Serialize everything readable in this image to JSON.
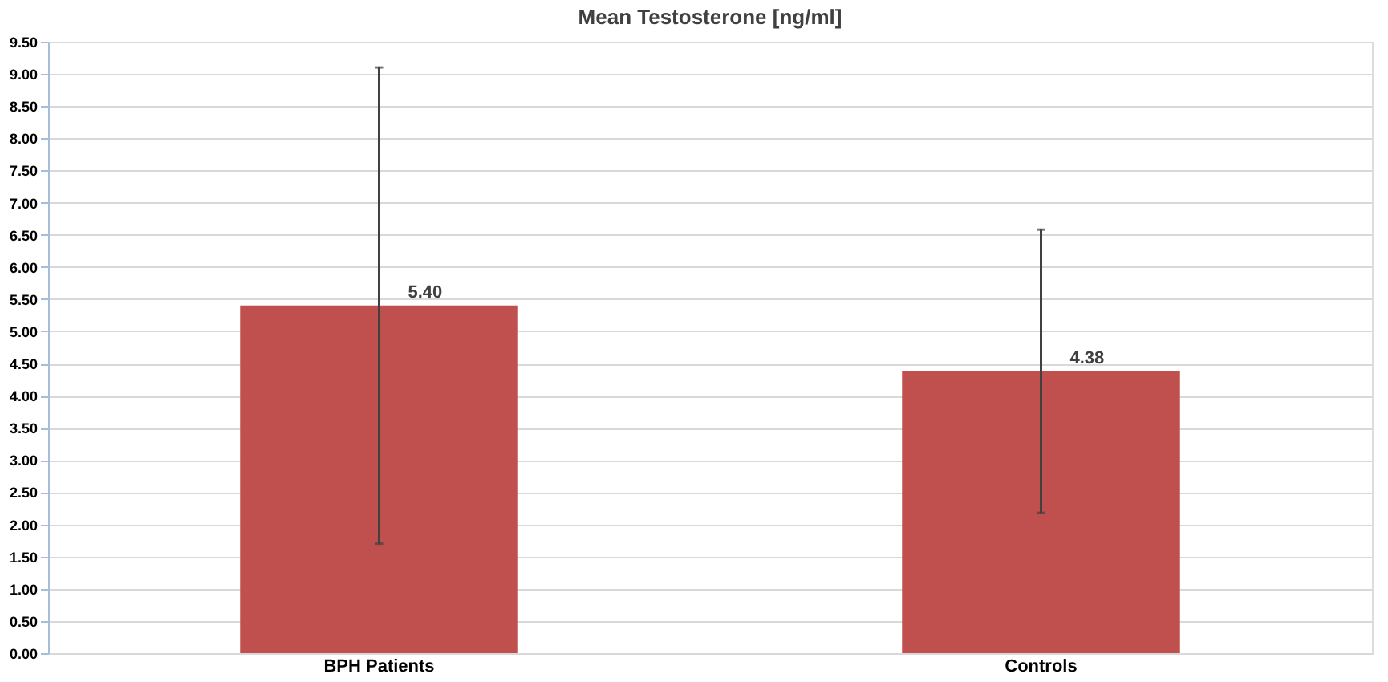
{
  "chart_data": {
    "type": "bar",
    "title": "Mean Testosterone [ng/ml]",
    "categories": [
      "BPH Patients",
      "Controls"
    ],
    "values": [
      5.4,
      4.38
    ],
    "value_labels": [
      "5.40",
      "4.38"
    ],
    "errors": [
      3.7,
      2.2
    ],
    "color": "#c0504d",
    "ylim": [
      0,
      9.5
    ],
    "yticks": [
      {
        "value": 0,
        "label": "0.00"
      },
      {
        "value": 0.5,
        "label": "0.50"
      },
      {
        "value": 1,
        "label": "1.00"
      },
      {
        "value": 1.5,
        "label": "1.50"
      },
      {
        "value": 2,
        "label": "2.00"
      },
      {
        "value": 2.5,
        "label": "2.50"
      },
      {
        "value": 3,
        "label": "3.00"
      },
      {
        "value": 3.5,
        "label": "3.50"
      },
      {
        "value": 4,
        "label": "4.00"
      },
      {
        "value": 4.5,
        "label": "4.50"
      },
      {
        "value": 5,
        "label": "5.00"
      },
      {
        "value": 5.5,
        "label": "5.50"
      },
      {
        "value": 6,
        "label": "6.00"
      },
      {
        "value": 6.5,
        "label": "6.50"
      },
      {
        "value": 7,
        "label": "7.00"
      },
      {
        "value": 7.5,
        "label": "7.50"
      },
      {
        "value": 8,
        "label": "8.00"
      },
      {
        "value": 8.5,
        "label": "8.50"
      },
      {
        "value": 9,
        "label": "9.00"
      },
      {
        "value": 9.5,
        "label": "9.50"
      }
    ],
    "grid": "y"
  }
}
